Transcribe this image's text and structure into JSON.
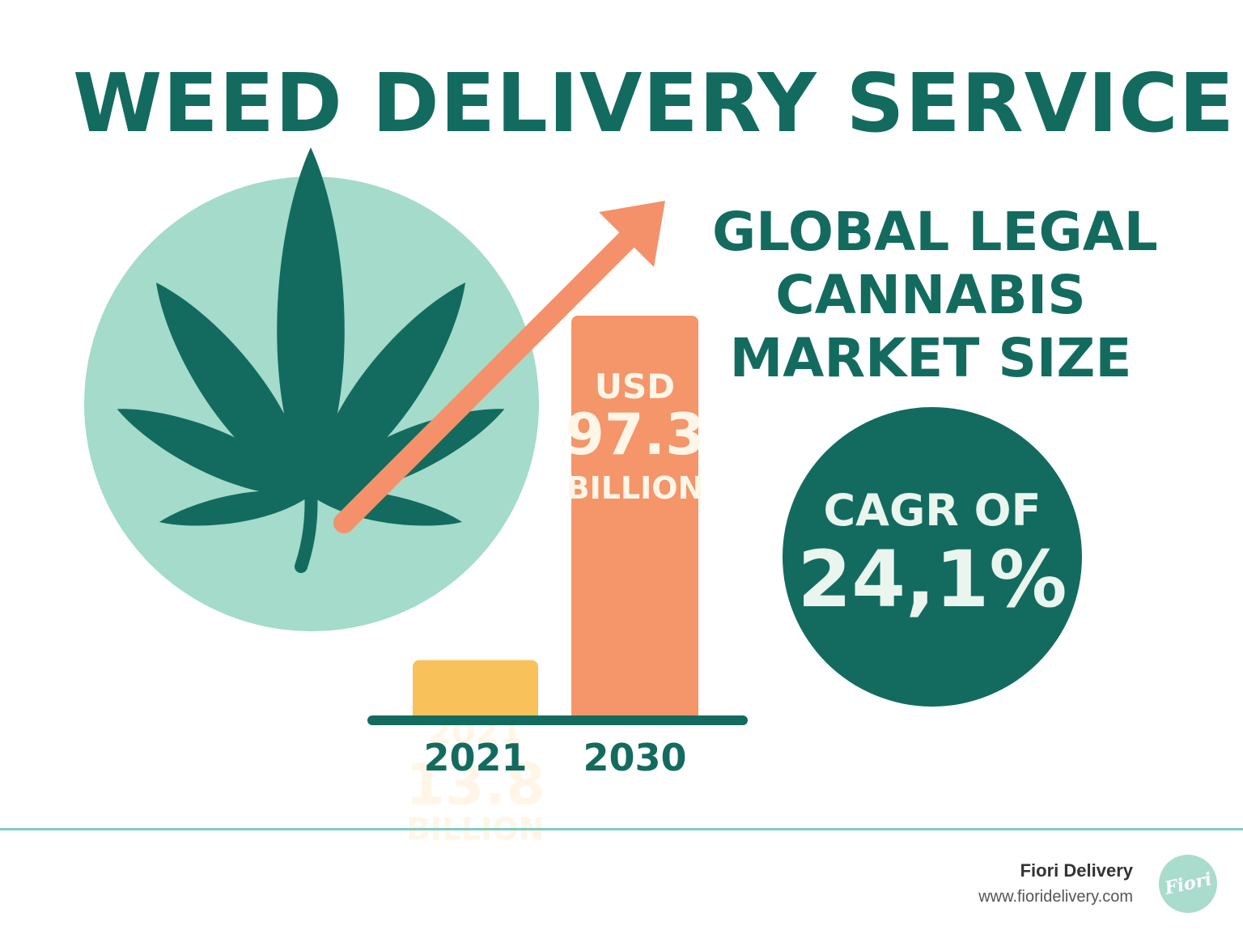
{
  "header": {
    "title": "WEED DELIVERY SERVICE"
  },
  "market": {
    "title_lines": [
      "GLOBAL LEGAL",
      "CANNABIS",
      "MARKET SIZE"
    ],
    "cagr_label": "CAGR OF",
    "cagr_value": "24,1%"
  },
  "chart_data": {
    "type": "bar",
    "categories": [
      "2021",
      "2030"
    ],
    "values": [
      13.8,
      97.3
    ],
    "unit": "BILLION",
    "bar_labels": [
      [
        "2021",
        "13.8",
        "BILLION"
      ],
      [
        "USD",
        "97.3",
        "BILLION"
      ]
    ],
    "title": "GLOBAL LEGAL CANNABIS MARKET SIZE",
    "colors": [
      "#F8C15A",
      "#F4956A"
    ]
  },
  "footer": {
    "company": "Fiori Delivery",
    "url": "www.fioridelivery.com",
    "logo_text": "Fiori"
  },
  "colors": {
    "primary": "#136B5F",
    "circle_light": "#A4DBCB",
    "arrow": "#F4916A",
    "bar_2021": "#F8C15A",
    "bar_2030": "#F4956A",
    "bar_text": "#FFF6E8",
    "cagr_text": "#EAF5EE",
    "footer_line": "#7FCCC0",
    "footer_company": "#333333",
    "footer_url": "#555555",
    "logo_bg": "#A9DCCD"
  }
}
